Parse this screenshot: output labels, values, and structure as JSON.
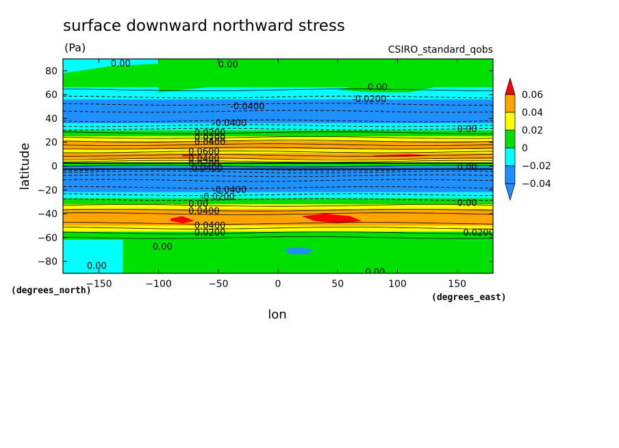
{
  "chart_data": {
    "type": "heatmap",
    "title": "surface downward northward stress",
    "units": "(Pa)",
    "dataset": "CSIRO_standard_qobs",
    "xlabel": "lon",
    "ylabel": "latitude",
    "x_units_label": "(degrees_east)",
    "y_units_label": "(degrees_north)",
    "xlim": [
      -180,
      180
    ],
    "ylim": [
      -90,
      90
    ],
    "x_ticks": [
      -150,
      -100,
      -50,
      0,
      50,
      100,
      150
    ],
    "x_tick_labels": [
      "−150",
      "−100",
      "−50",
      "0",
      "50",
      "100",
      "150"
    ],
    "y_ticks": [
      -80,
      -60,
      -40,
      -20,
      0,
      20,
      40,
      60,
      80
    ],
    "y_tick_labels": [
      "−80",
      "−60",
      "−40",
      "−20",
      "0",
      "20",
      "40",
      "60",
      "80"
    ],
    "colorbar": {
      "levels": [
        -0.04,
        -0.02,
        0,
        0.02,
        0.04,
        0.06
      ],
      "tick_labels": [
        "−0.04",
        "−0.02",
        "0",
        "0.02",
        "0.04",
        "0.06"
      ],
      "colors": [
        "#1e90ff",
        "#00ffff",
        "#00e000",
        "#ffff00",
        "#ffa500",
        "#ff0000"
      ],
      "bin_colors": [
        "#1e90ff",
        "#00ffff",
        "#00e000",
        "#ffff00",
        "#ffa500"
      ],
      "under_color": "#1e90ff",
      "over_color": "#ff0000"
    },
    "bands": [
      {
        "lat_min": 66,
        "lat_max": 90,
        "class": 2
      },
      {
        "lat_min": 60,
        "lat_max": 66,
        "class": 1
      },
      {
        "lat_min": 56,
        "lat_max": 60,
        "class": 1
      },
      {
        "lat_min": 36,
        "lat_max": 56,
        "class": 0
      },
      {
        "lat_min": 30,
        "lat_max": 36,
        "class": 1
      },
      {
        "lat_min": 25,
        "lat_max": 30,
        "class": 2
      },
      {
        "lat_min": 21,
        "lat_max": 25,
        "class": 3
      },
      {
        "lat_min": 14,
        "lat_max": 21,
        "class": 4
      },
      {
        "lat_min": 11,
        "lat_max": 14,
        "class": 3
      },
      {
        "lat_min": 6,
        "lat_max": 11,
        "class": 4
      },
      {
        "lat_min": 3,
        "lat_max": 6,
        "class": 3
      },
      {
        "lat_min": 0,
        "lat_max": 3,
        "class": 2
      },
      {
        "lat_min": -6,
        "lat_max": 0,
        "class": 0
      },
      {
        "lat_min": -22,
        "lat_max": -6,
        "class": 0
      },
      {
        "lat_min": -27,
        "lat_max": -22,
        "class": 1
      },
      {
        "lat_min": -32,
        "lat_max": -27,
        "class": 2
      },
      {
        "lat_min": -36,
        "lat_max": -32,
        "class": 3
      },
      {
        "lat_min": -50,
        "lat_max": -36,
        "class": 4
      },
      {
        "lat_min": -55,
        "lat_max": -50,
        "class": 3
      },
      {
        "lat_min": -62,
        "lat_max": -55,
        "class": 2
      },
      {
        "lat_min": -90,
        "lat_max": -62,
        "class": 1
      }
    ],
    "patches": [
      {
        "lon": [
          -130,
          -60,
          -30,
          -10,
          30,
          60,
          100,
          150,
          180,
          180,
          150,
          100,
          60,
          30,
          -10,
          -30,
          -60,
          -130
        ],
        "lat": [
          -62,
          -58,
          -60,
          -56,
          -56,
          -60,
          -60,
          -62,
          -62,
          -90,
          -90,
          -90,
          -90,
          -90,
          -90,
          -90,
          -90,
          -90
        ],
        "class": 2
      },
      {
        "lon": [
          -180,
          -140,
          -100,
          -60,
          -30,
          -10,
          -10,
          -60,
          -100,
          -140,
          -180
        ],
        "lat": [
          78,
          84,
          86,
          84,
          80,
          78,
          90,
          90,
          90,
          90,
          90
        ],
        "class": 1
      },
      {
        "lon": [
          -100,
          -60,
          -40,
          -10,
          20,
          20,
          -10,
          -40,
          -60,
          -100
        ],
        "lat": [
          62,
          66,
          72,
          68,
          70,
          90,
          90,
          90,
          90,
          90
        ],
        "class": 2
      },
      {
        "lon": [
          50,
          80,
          110,
          130,
          110,
          80,
          50
        ],
        "lat": [
          64,
          70,
          72,
          66,
          62,
          62,
          64
        ],
        "class": 2
      },
      {
        "lon": [
          -90,
          -80,
          -70,
          -80,
          -90
        ],
        "lat": [
          -44,
          -42,
          -46,
          -48,
          -46
        ],
        "class": 5
      },
      {
        "lon": [
          20,
          40,
          60,
          70,
          50,
          30,
          20
        ],
        "lat": [
          -42,
          -40,
          -42,
          -46,
          -48,
          -46,
          -42
        ],
        "class": 5
      },
      {
        "lon": [
          -80,
          -60,
          -80
        ],
        "lat": [
          10,
          9,
          8
        ],
        "class": 5
      },
      {
        "lon": [
          80,
          110,
          130,
          110,
          80
        ],
        "lat": [
          9,
          10,
          9,
          8,
          8
        ],
        "class": 5
      },
      {
        "lon": [
          5,
          15,
          30,
          25,
          10,
          5
        ],
        "lat": [
          -70,
          -68,
          -70,
          -74,
          -74,
          -70
        ],
        "class": 0
      },
      {
        "lon": [
          -180,
          180,
          180,
          -180
        ],
        "lat": [
          3,
          3,
          2,
          2
        ],
        "class": 6
      },
      {
        "lon": [
          -180,
          180,
          180,
          -180
        ],
        "lat": [
          -2,
          -2,
          -3,
          -3
        ],
        "class": 6
      }
    ],
    "contour_labels": [
      {
        "lon": -140,
        "lat": 86,
        "text": "0.00"
      },
      {
        "lon": -50,
        "lat": 85,
        "text": "0.00"
      },
      {
        "lon": 75,
        "lat": 66,
        "text": "0.00"
      },
      {
        "lon": 62,
        "lat": 56,
        "text": "-0.0200"
      },
      {
        "lon": -40,
        "lat": 50,
        "text": "-0.0400"
      },
      {
        "lon": -55,
        "lat": 36,
        "text": "-0.0400"
      },
      {
        "lon": -70,
        "lat": 28,
        "text": "0.0200"
      },
      {
        "lon": -70,
        "lat": 24,
        "text": "0.0200"
      },
      {
        "lon": -70,
        "lat": 20,
        "text": "0.0400"
      },
      {
        "lon": -75,
        "lat": 12,
        "text": "0.0600"
      },
      {
        "lon": -75,
        "lat": 6,
        "text": "0.0400"
      },
      {
        "lon": -75,
        "lat": 2,
        "text": "0.0200"
      },
      {
        "lon": -75,
        "lat": -2,
        "text": "-0.0400"
      },
      {
        "lon": 150,
        "lat": 31,
        "text": "0.00"
      },
      {
        "lon": 150,
        "lat": -1,
        "text": "0.00"
      },
      {
        "lon": -55,
        "lat": -20,
        "text": "-0.0400"
      },
      {
        "lon": -65,
        "lat": -26,
        "text": "-0.0200"
      },
      {
        "lon": -75,
        "lat": -32,
        "text": "0.00"
      },
      {
        "lon": -75,
        "lat": -38,
        "text": "0.0400"
      },
      {
        "lon": -70,
        "lat": -50,
        "text": "0.0400"
      },
      {
        "lon": -70,
        "lat": -56,
        "text": "0.0200"
      },
      {
        "lon": 150,
        "lat": -31,
        "text": "0.00"
      },
      {
        "lon": 155,
        "lat": -56,
        "text": "0.0200"
      },
      {
        "lon": -105,
        "lat": -68,
        "text": "0.00"
      },
      {
        "lon": -160,
        "lat": -84,
        "text": "0.00"
      },
      {
        "lon": 73,
        "lat": -89,
        "text": "0.00"
      }
    ],
    "dashed_lats": [
      58,
      52,
      46,
      38,
      34,
      31,
      -3,
      -5,
      -8,
      -12,
      -18,
      -24,
      -28
    ],
    "solid_lats": [
      64,
      28,
      24,
      21,
      18,
      15,
      12,
      9,
      6,
      4,
      0,
      -33,
      -37,
      -40,
      -48,
      -52,
      -56,
      -60
    ]
  }
}
